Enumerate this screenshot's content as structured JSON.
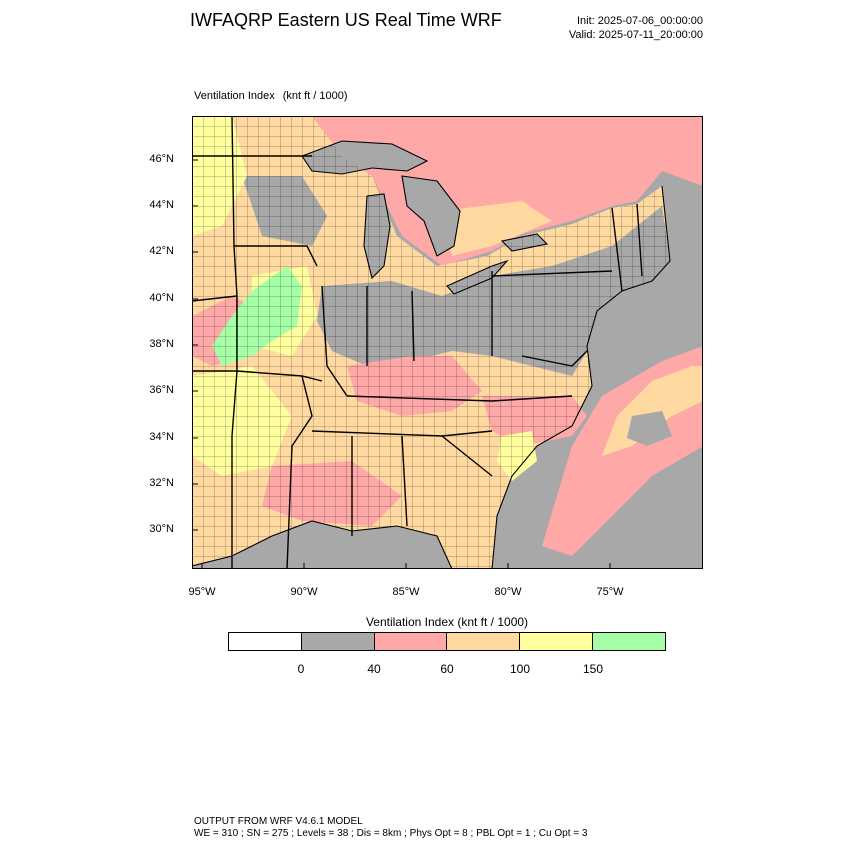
{
  "title": "IWFAQRP Eastern US Real Time WRF",
  "init": "Init: 2025-07-06_00:00:00",
  "valid": "Valid: 2025-07-11_20:00:00",
  "variable": {
    "name": "Ventilation Index",
    "units": "(knt ft / 1000)"
  },
  "latitudes": [
    "46°N",
    "44°N",
    "42°N",
    "40°N",
    "38°N",
    "36°N",
    "34°N",
    "32°N",
    "30°N"
  ],
  "longitudes": [
    "95°W",
    "90°W",
    "85°W",
    "80°W",
    "75°W"
  ],
  "colorbar": {
    "title": "Ventilation Index  (knt ft / 1000)",
    "ticks": [
      "0",
      "40",
      "60",
      "100",
      "150"
    ],
    "colors": [
      "#ffffff",
      "#a8a8a8",
      "#ffa8a8",
      "#ffd9a0",
      "#ffff9e",
      "#a6ffa6"
    ]
  },
  "map_colors": {
    "ocean": "#a8a8a8",
    "land": "#ffd9a0"
  },
  "footer": {
    "line1": "OUTPUT FROM WRF V4.6.1 MODEL",
    "line2": "WE = 310 ; SN = 275 ; Levels = 38 ; Dis = 8km ; Phys Opt = 8 ; PBL Opt = 1 ; Cu Opt = 3"
  }
}
